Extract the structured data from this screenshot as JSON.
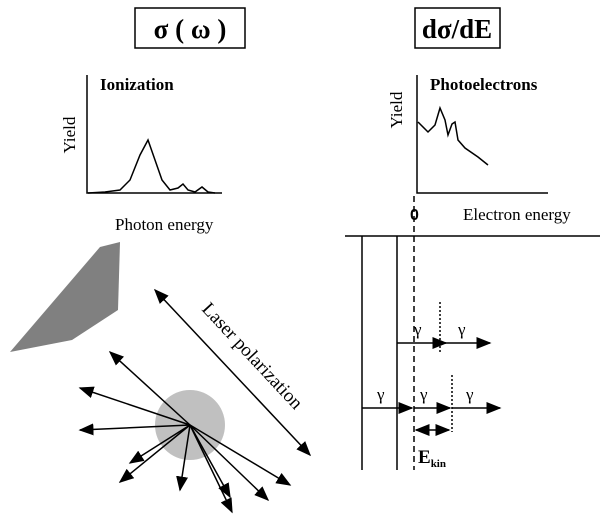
{
  "left_panel": {
    "box_title": "σ ( ω )",
    "y_label": "Yield",
    "plot_title": "Ionization",
    "x_label": "Photon energy"
  },
  "right_panel": {
    "box_title": "dσ/dE",
    "y_label": "Yield",
    "plot_title": "Photoelectrons",
    "zero_label": "0",
    "x_label": "Electron energy"
  },
  "polarization_label": "Laser polarization",
  "energy_diagram": {
    "photons": [
      "γ",
      "γ",
      "γ",
      "γ",
      "γ"
    ],
    "kinetic_energy": {
      "symbol": "E",
      "subscript": "kin"
    }
  }
}
